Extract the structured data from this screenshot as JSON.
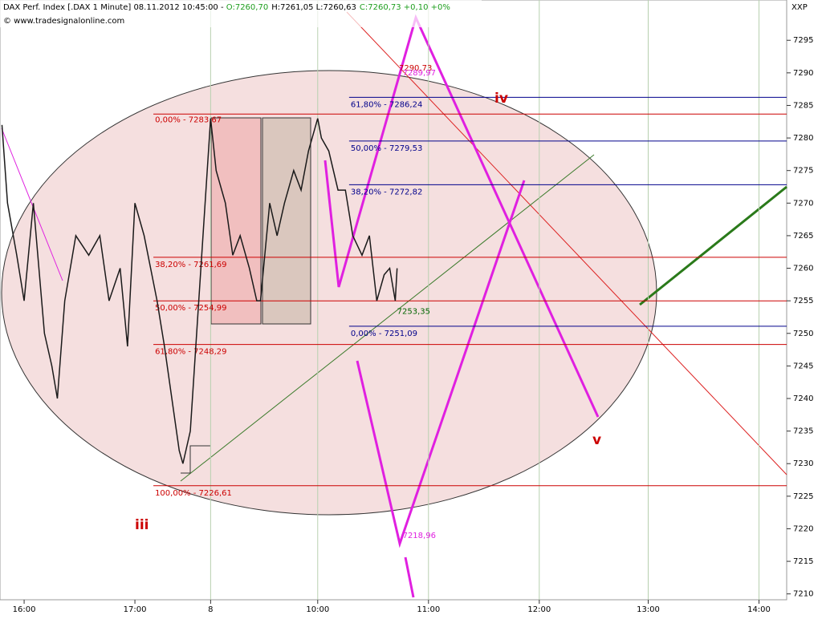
{
  "chart_data": {
    "type": "line",
    "header": {
      "symbol": "DAX Perf. Index [.DAX 1 Minute] 08.11.2012 10:45:00 - ",
      "open": "O:7260,70",
      "high_low": "H:7261,05 L:7260,63",
      "close": "C:7260,73 +0,10 +0%"
    },
    "copyright": "© www.tradesignalonline.com",
    "axis_label": "XXP",
    "x": [
      -12,
      -9,
      -4,
      0,
      5,
      11,
      15,
      18,
      22,
      28,
      35,
      41,
      46,
      52,
      56,
      60,
      65,
      72,
      76,
      80,
      84,
      86,
      90,
      101,
      104,
      109,
      113,
      117,
      122,
      126,
      128,
      133,
      137,
      141,
      146,
      150,
      154,
      159,
      161,
      165,
      170,
      174,
      178,
      183,
      187,
      189,
      191,
      195,
      198,
      201,
      202
    ],
    "series": [
      {
        "name": "DAX Perf. Index",
        "color": "#1a1a1a",
        "values": [
          7282,
          7270,
          7262,
          7255,
          7270,
          7250,
          7245,
          7240,
          7255,
          7265,
          7262,
          7265,
          7255,
          7260,
          7248,
          7270,
          7265,
          7255,
          7248,
          7240,
          7232,
          7230,
          7235,
          7283,
          7275,
          7270,
          7262,
          7265,
          7260,
          7255,
          7255,
          7270,
          7265,
          7270,
          7275,
          7272,
          7278,
          7283,
          7280,
          7278,
          7272,
          7272,
          7265,
          7262,
          7265,
          7260,
          7255,
          7259,
          7260,
          7255,
          7260
        ]
      }
    ],
    "xlim": [
      -12.2,
      413
    ],
    "xticks": [
      {
        "value": 0,
        "label": "16:00"
      },
      {
        "value": 60,
        "label": "17:00"
      },
      {
        "value": 101,
        "label": "8"
      },
      {
        "value": 159,
        "label": "10:00"
      },
      {
        "value": 219,
        "label": "11:00"
      },
      {
        "value": 279,
        "label": "12:00"
      },
      {
        "value": 338,
        "label": "13:00"
      },
      {
        "value": 398,
        "label": "14:00"
      }
    ],
    "ylim": [
      7209.1,
      7300.2
    ],
    "yticks": [
      7210,
      7215,
      7220,
      7225,
      7230,
      7235,
      7240,
      7245,
      7250,
      7255,
      7260,
      7265,
      7270,
      7275,
      7280,
      7285,
      7290,
      7295
    ],
    "grid": "x",
    "fib_red": {
      "color": "#cc0000",
      "x_start": 70,
      "levels": [
        {
          "value": 7283.67,
          "label": "0,00% - 7283,67"
        },
        {
          "value": 7261.69,
          "label": "38,20% - 7261,69"
        },
        {
          "value": 7254.99,
          "label": "50,00% - 7254,99"
        },
        {
          "value": 7248.29,
          "label": "61,80% - 7248,29"
        },
        {
          "value": 7226.61,
          "label": "100,00% - 7226,61"
        }
      ]
    },
    "fib_blue": {
      "color": "#00008b",
      "x_start": 176,
      "levels": [
        {
          "value": 7286.24,
          "label": "61,80% - 7286,24"
        },
        {
          "value": 7279.53,
          "label": "50,00% - 7279,53"
        },
        {
          "value": 7272.82,
          "label": "38,20% - 7272,82"
        },
        {
          "value": 7251.09,
          "label": "0,00% - 7251,09"
        }
      ]
    },
    "price_labels": [
      {
        "x": 203,
        "value": 7290.73,
        "label": "7290,73",
        "color": "#cc0000"
      },
      {
        "x": 205,
        "value": 7289.97,
        "label": "7289,97",
        "color": "#e020e0"
      },
      {
        "x": 202,
        "value": 7253.35,
        "label": "7253,35",
        "color": "#006400"
      },
      {
        "x": 205,
        "value": 7218.96,
        "label": "7218,96",
        "color": "#e020e0"
      }
    ],
    "waves": [
      "iii",
      "iv",
      "v"
    ]
  }
}
